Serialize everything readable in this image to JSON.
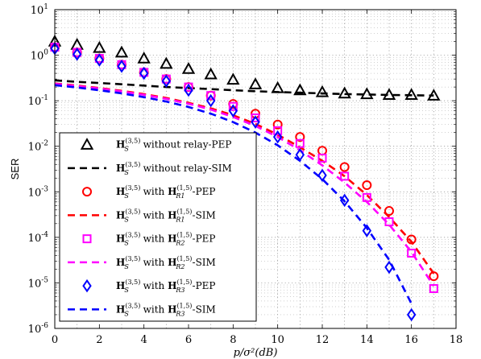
{
  "chart_data": {
    "type": "line",
    "title": "",
    "xlabel": "p/σ²(dB)",
    "ylabel": "SER",
    "xlim": [
      0,
      18
    ],
    "ylim_log10": [
      -6,
      1
    ],
    "yscale": "log",
    "grid": true,
    "legend_position": "bottom-left",
    "x_ticks": [
      "0",
      "2",
      "4",
      "6",
      "8",
      "10",
      "12",
      "14",
      "16",
      "18"
    ],
    "y_ticks": [
      {
        "base": "10",
        "exp": "1"
      },
      {
        "base": "10",
        "exp": "0"
      },
      {
        "base": "10",
        "exp": "-1"
      },
      {
        "base": "10",
        "exp": "-2"
      },
      {
        "base": "10",
        "exp": "-3"
      },
      {
        "base": "10",
        "exp": "-4"
      },
      {
        "base": "10",
        "exp": "-5"
      },
      {
        "base": "10",
        "exp": "-6"
      }
    ],
    "series": [
      {
        "name": "H_S^(3,5) without relay-PEP",
        "legend": {
          "main": "H",
          "sub": "S",
          "sup": "(3,5)",
          "rest": " without relay-PEP"
        },
        "color": "#000000",
        "marker": "triangle",
        "style": "markers",
        "x": [
          0,
          1,
          2,
          3,
          4,
          5,
          6,
          7,
          8,
          9,
          10,
          11,
          12,
          13,
          14,
          15,
          16,
          17
        ],
        "y": [
          2.0,
          1.7,
          1.45,
          1.15,
          0.85,
          0.65,
          0.5,
          0.38,
          0.29,
          0.23,
          0.19,
          0.17,
          0.155,
          0.145,
          0.14,
          0.135,
          0.135,
          0.13
        ]
      },
      {
        "name": "H_S^(3,5) without relay-SIM",
        "legend": {
          "main": "H",
          "sub": "S",
          "sup": "(3,5)",
          "rest": " without relay-SIM"
        },
        "color": "#000000",
        "marker": "none",
        "style": "dashed",
        "x": [
          0,
          1,
          2,
          3,
          4,
          5,
          6,
          7,
          8,
          9,
          10,
          11,
          12,
          13,
          14,
          15,
          16,
          17
        ],
        "y": [
          0.28,
          0.26,
          0.245,
          0.23,
          0.215,
          0.2,
          0.19,
          0.18,
          0.17,
          0.162,
          0.155,
          0.15,
          0.145,
          0.14,
          0.137,
          0.134,
          0.132,
          0.13
        ]
      },
      {
        "name": "H_S^(3,5) with H_R1^(1,5)-PEP",
        "legend": {
          "main": "H",
          "sub": "S",
          "sup": "(3,5)",
          "rest": " with ",
          "main2": "H",
          "sub2": "R1",
          "sup2": "(1,5)",
          "rest2": "-PEP"
        },
        "color": "#ff0000",
        "marker": "circle",
        "style": "markers",
        "x": [
          0,
          1,
          2,
          3,
          4,
          5,
          6,
          7,
          8,
          9,
          10,
          11,
          12,
          13,
          14,
          15,
          16,
          17
        ],
        "y": [
          1.5,
          1.15,
          0.85,
          0.62,
          0.42,
          0.3,
          0.2,
          0.13,
          0.085,
          0.052,
          0.03,
          0.016,
          0.008,
          0.0035,
          0.0014,
          0.00038,
          9e-05,
          1.4e-05
        ]
      },
      {
        "name": "H_S^(3,5) with H_R1^(1,5)-SIM",
        "legend": {
          "main": "H",
          "sub": "S",
          "sup": "(3,5)",
          "rest": " with ",
          "main2": "H",
          "sub2": "R1",
          "sup2": "(1,5)",
          "rest2": "-SIM"
        },
        "color": "#ff0000",
        "marker": "none",
        "style": "dashed",
        "x": [
          0,
          1,
          2,
          3,
          4,
          5,
          6,
          7,
          8,
          9,
          10,
          11,
          12,
          13,
          14,
          15,
          16,
          17
        ],
        "y": [
          0.24,
          0.215,
          0.19,
          0.165,
          0.14,
          0.115,
          0.09,
          0.068,
          0.048,
          0.031,
          0.018,
          0.0095,
          0.0048,
          0.0022,
          0.00085,
          0.00028,
          8e-05,
          1.6e-05
        ]
      },
      {
        "name": "H_S^(3,5) with H_R2^(1,5)-PEP",
        "legend": {
          "main": "H",
          "sub": "S",
          "sup": "(3,5)",
          "rest": " with ",
          "main2": "H",
          "sub2": "R2",
          "sup2": "(1,5)",
          "rest2": "-PEP"
        },
        "color": "#ff00ff",
        "marker": "square",
        "style": "markers",
        "x": [
          0,
          1,
          2,
          3,
          4,
          5,
          6,
          7,
          8,
          9,
          10,
          11,
          12,
          13,
          14,
          15,
          16,
          17
        ],
        "y": [
          1.5,
          1.15,
          0.85,
          0.62,
          0.42,
          0.3,
          0.2,
          0.13,
          0.075,
          0.042,
          0.022,
          0.0115,
          0.0055,
          0.0022,
          0.00075,
          0.00022,
          4.5e-05,
          7.5e-06
        ]
      },
      {
        "name": "H_S^(3,5) with H_R2^(1,5)-SIM",
        "legend": {
          "main": "H",
          "sub": "S",
          "sup": "(3,5)",
          "rest": " with ",
          "main2": "H",
          "sub2": "R2",
          "sup2": "(1,5)",
          "rest2": "-SIM"
        },
        "color": "#ff00ff",
        "marker": "none",
        "style": "dashed",
        "x": [
          0,
          1,
          2,
          3,
          4,
          5,
          6,
          7,
          8,
          9,
          10,
          11,
          12,
          13,
          14,
          15,
          16,
          17
        ],
        "y": [
          0.235,
          0.21,
          0.185,
          0.16,
          0.135,
          0.11,
          0.086,
          0.064,
          0.044,
          0.028,
          0.016,
          0.0082,
          0.0038,
          0.0016,
          0.0006,
          0.00019,
          4.8e-05,
          8.5e-06
        ]
      },
      {
        "name": "H_S^(3,5) with H_R3^(1,5)-PEP",
        "legend": {
          "main": "H",
          "sub": "S",
          "sup": "(3,5)",
          "rest": " with ",
          "main2": "H",
          "sub2": "R3",
          "sup2": "(1,5)",
          "rest2": "-PEP"
        },
        "color": "#0000ff",
        "marker": "diamond",
        "style": "markers",
        "x": [
          0,
          1,
          2,
          3,
          4,
          5,
          6,
          7,
          8,
          9,
          10,
          11,
          12,
          13,
          14,
          15,
          16
        ],
        "y": [
          1.4,
          1.05,
          0.78,
          0.57,
          0.4,
          0.27,
          0.17,
          0.1,
          0.06,
          0.034,
          0.016,
          0.0065,
          0.0023,
          0.00065,
          0.00014,
          2.2e-05,
          2e-06
        ]
      },
      {
        "name": "H_S^(3,5) with H_R3^(1,5)-SIM",
        "legend": {
          "main": "H",
          "sub": "S",
          "sup": "(3,5)",
          "rest": " with ",
          "main2": "H",
          "sub2": "R3",
          "sup2": "(1,5)",
          "rest2": "-SIM"
        },
        "color": "#0000ff",
        "marker": "none",
        "style": "dashed",
        "x": [
          0,
          1,
          2,
          3,
          4,
          5,
          6,
          7,
          8,
          9,
          10,
          11,
          12,
          13,
          14,
          15,
          16
        ],
        "y": [
          0.22,
          0.195,
          0.17,
          0.145,
          0.12,
          0.096,
          0.073,
          0.052,
          0.034,
          0.02,
          0.0105,
          0.0048,
          0.0019,
          0.00062,
          0.00016,
          3.2e-05,
          3.5e-06
        ]
      }
    ]
  }
}
